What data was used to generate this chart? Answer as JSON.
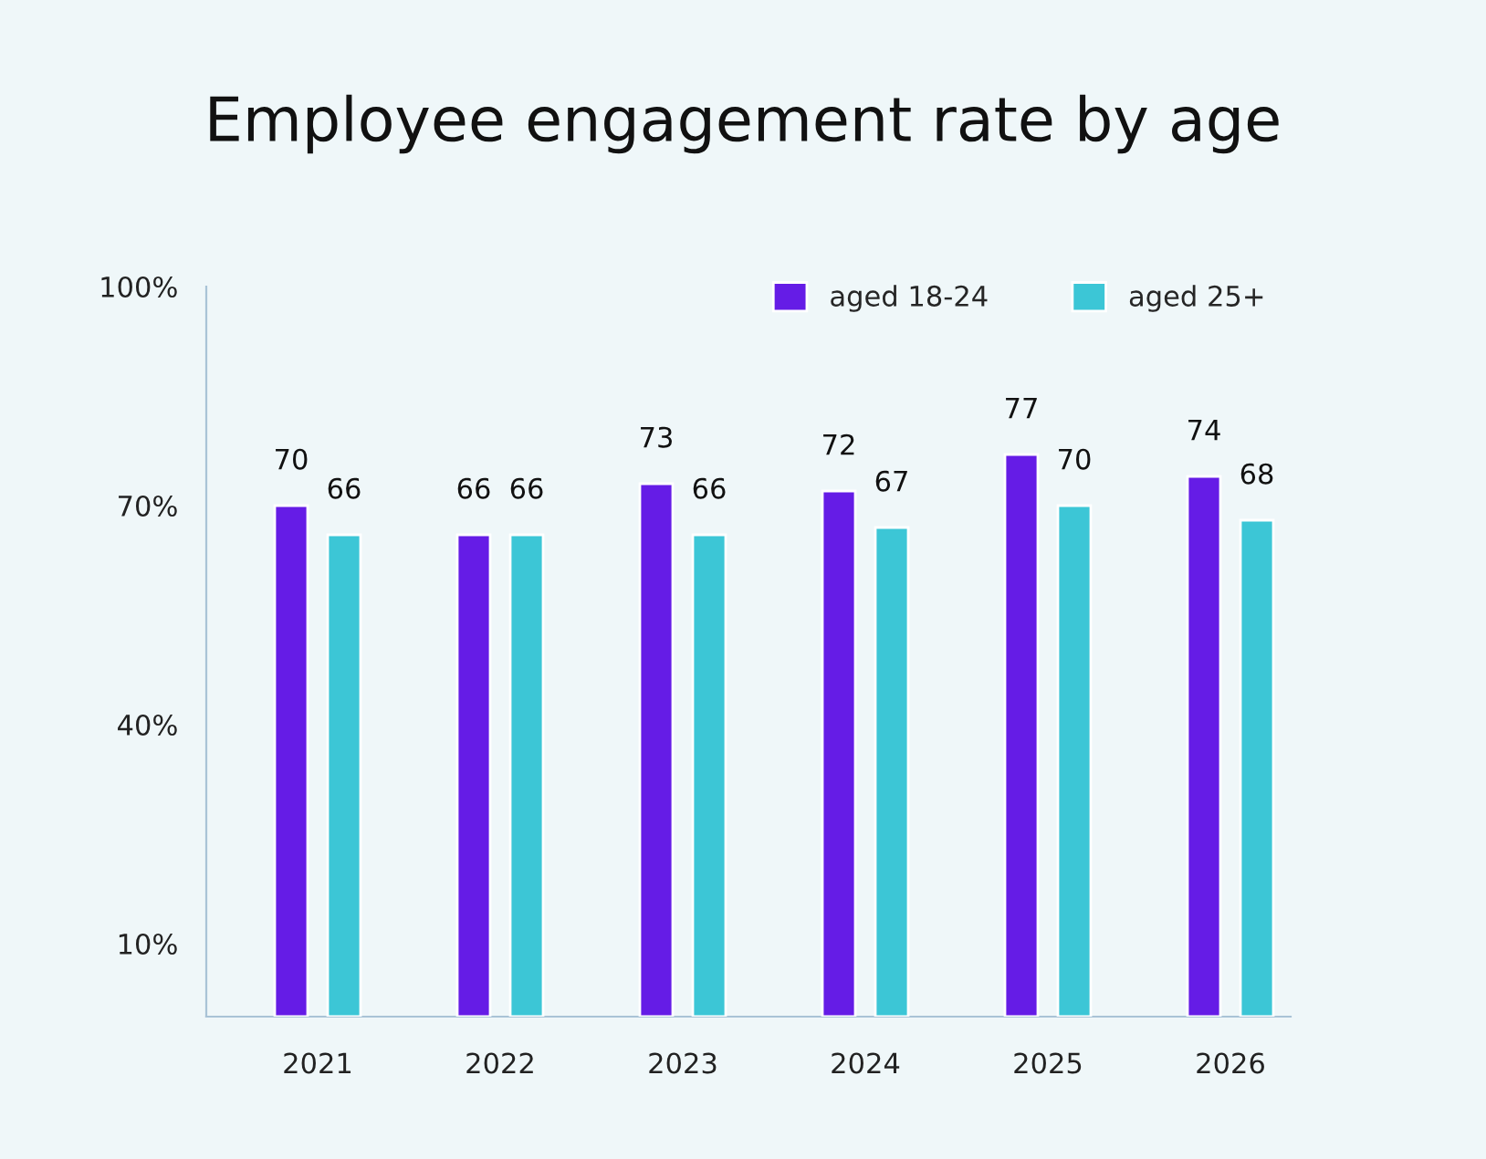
{
  "chart_data": {
    "type": "bar",
    "title": "Employee engagement rate by age",
    "categories": [
      "2021",
      "2022",
      "2023",
      "2024",
      "2025",
      "2026"
    ],
    "series": [
      {
        "name": "aged 18-24",
        "color": "#651ce6",
        "values": [
          70,
          66,
          73,
          72,
          77,
          74
        ]
      },
      {
        "name": "aged 25+",
        "color": "#3cc6d6",
        "values": [
          66,
          66,
          66,
          67,
          70,
          68
        ]
      }
    ],
    "ylim": [
      0,
      100
    ],
    "yticks": [
      {
        "value": 10,
        "label": "10%"
      },
      {
        "value": 40,
        "label": "40%"
      },
      {
        "value": 70,
        "label": "70%"
      },
      {
        "value": 100,
        "label": "100%"
      }
    ],
    "data_labels": true,
    "grid": false,
    "legend": "top right"
  }
}
